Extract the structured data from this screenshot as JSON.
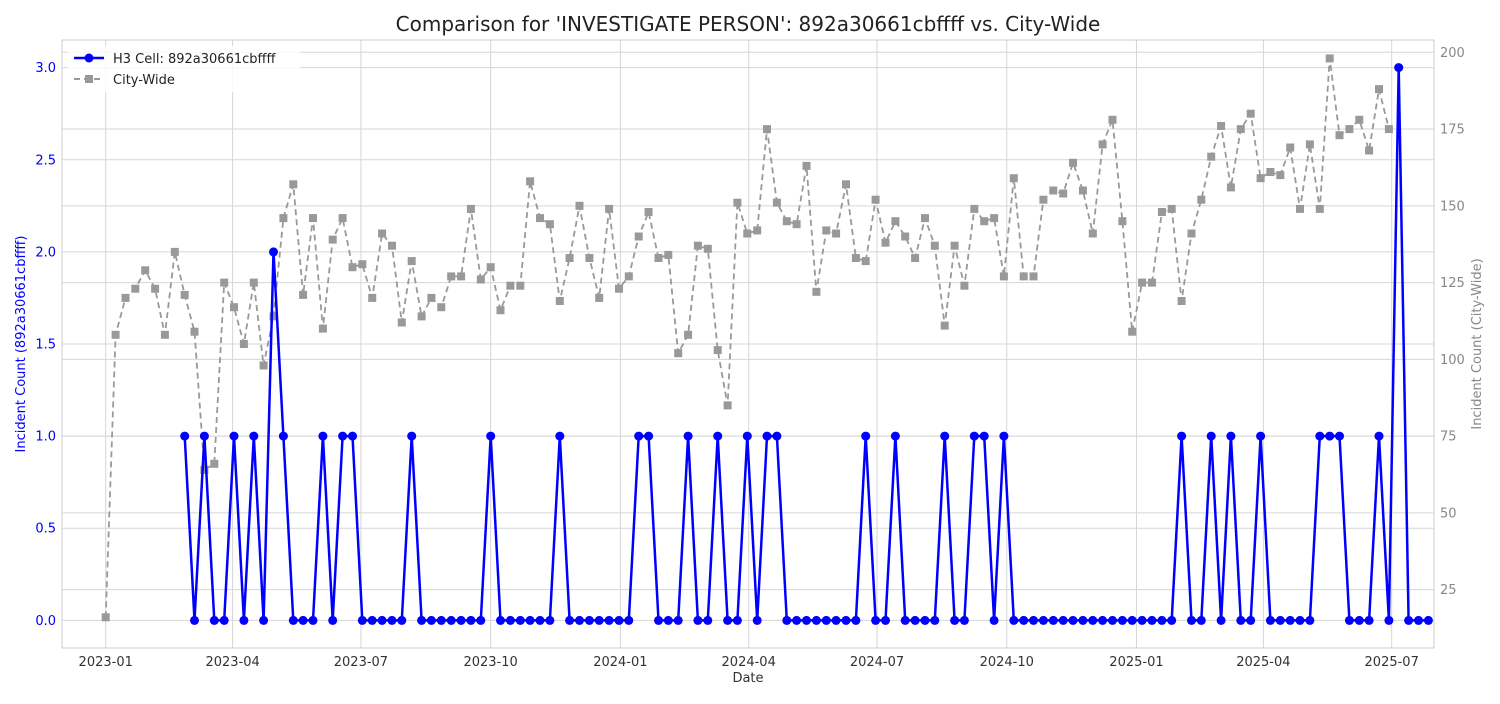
{
  "chart_data": {
    "type": "line",
    "title": "Comparison for 'INVESTIGATE PERSON': 892a30661cbffff vs. City-Wide",
    "xlabel": "Date",
    "ylabel_left": "Incident Count (892a30661cbffff)",
    "ylabel_right": "Incident Count (City-Wide)",
    "x_start": "2023-01-01",
    "x_step_days": 7,
    "xlim": [
      "2022-12-01",
      "2025-07-31"
    ],
    "x_ticks": [
      "2023-01-01",
      "2023-04-01",
      "2023-07-01",
      "2023-10-01",
      "2024-01-01",
      "2024-04-01",
      "2024-07-01",
      "2024-10-01",
      "2025-01-01",
      "2025-04-01",
      "2025-07-01"
    ],
    "x_tick_labels": [
      "2023-01",
      "2023-04",
      "2023-07",
      "2023-10",
      "2024-01",
      "2024-04",
      "2024-07",
      "2024-10",
      "2025-01",
      "2025-04",
      "2025-07"
    ],
    "ylim_left": [
      -0.15,
      3.15
    ],
    "y_ticks_left": [
      0.0,
      0.5,
      1.0,
      1.5,
      2.0,
      2.5,
      3.0
    ],
    "y_tick_labels_left": [
      "0.0",
      "0.5",
      "1.0",
      "1.5",
      "2.0",
      "2.5",
      "3.0"
    ],
    "ylim_right": [
      6,
      204
    ],
    "y_ticks_right": [
      25,
      50,
      75,
      100,
      125,
      150,
      175,
      200
    ],
    "y_tick_labels_right": [
      "25",
      "50",
      "75",
      "100",
      "125",
      "150",
      "175",
      "200"
    ],
    "grid": true,
    "legend_position": "top-left",
    "series": [
      {
        "name": "H3 Cell: 892a30661cbffff",
        "axis": "left",
        "color": "#0000ff",
        "style": "solid",
        "marker": "circle",
        "start_index": 8,
        "values": [
          1,
          0,
          1,
          0,
          0,
          1,
          0,
          1,
          0,
          2,
          1,
          0,
          0,
          0,
          1,
          0,
          1,
          1,
          0,
          0,
          0,
          0,
          0,
          1,
          0,
          0,
          0,
          0,
          0,
          0,
          0,
          1,
          0,
          0,
          0,
          0,
          0,
          0,
          1,
          0,
          0,
          0,
          0,
          0,
          0,
          0,
          1,
          1,
          0,
          0,
          0,
          1,
          0,
          0,
          1,
          0,
          0,
          1,
          0,
          1,
          1,
          0,
          0,
          0,
          0,
          0,
          0,
          0,
          0,
          1,
          0,
          0,
          1,
          0,
          0,
          0,
          0,
          1,
          0,
          0,
          1,
          1,
          0,
          1,
          0,
          0,
          0,
          0,
          0,
          0,
          0,
          0,
          0,
          0,
          0,
          0,
          0,
          0,
          0,
          0,
          0,
          1,
          0,
          0,
          1,
          0,
          1,
          0,
          0,
          1,
          0,
          0,
          0,
          0,
          0,
          1,
          1,
          1,
          0,
          0,
          0,
          1,
          0,
          3,
          0,
          0,
          0
        ]
      },
      {
        "name": "City-Wide",
        "axis": "right",
        "color": "#999999",
        "style": "dashed",
        "marker": "square",
        "start_index": 0,
        "values": [
          16,
          108,
          120,
          123,
          129,
          123,
          108,
          135,
          121,
          109,
          64,
          66,
          125,
          117,
          105,
          125,
          98,
          114,
          146,
          157,
          121,
          146,
          110,
          139,
          146,
          130,
          131,
          120,
          141,
          137,
          112,
          132,
          114,
          120,
          117,
          127,
          127,
          149,
          126,
          130,
          116,
          124,
          124,
          158,
          146,
          144,
          119,
          133,
          150,
          133,
          120,
          149,
          123,
          127,
          140,
          148,
          133,
          134,
          102,
          108,
          137,
          136,
          103,
          85,
          151,
          141,
          142,
          175,
          151,
          145,
          144,
          163,
          122,
          142,
          141,
          157,
          133,
          132,
          152,
          138,
          145,
          140,
          133,
          146,
          137,
          111,
          137,
          124,
          149,
          145,
          146,
          127,
          159,
          127,
          127,
          152,
          155,
          154,
          164,
          155,
          141,
          170,
          178,
          145,
          109,
          125,
          125,
          148,
          149,
          119,
          141,
          152,
          166,
          176,
          156,
          175,
          180,
          159,
          161,
          160,
          169,
          149,
          170,
          149,
          198,
          173,
          175,
          178,
          168,
          188,
          175
        ]
      }
    ]
  }
}
